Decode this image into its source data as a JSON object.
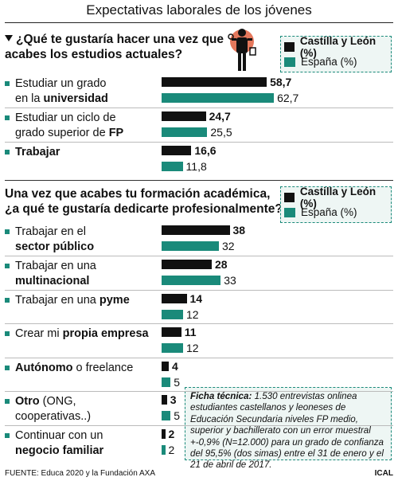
{
  "header": {
    "title": "Expectativas laborales de los jóvenes"
  },
  "footer": {
    "source": "FUENTE: Educa 2020 y la Fundación AXA",
    "credit": "ICAL"
  },
  "legend": {
    "cyl": "Castilla y León (%)",
    "esp": "España (%)"
  },
  "colors": {
    "cyl": "#111111",
    "esp": "#1a8a7a"
  },
  "ficha": {
    "label": "Ficha técnica:",
    "text": "1.530 entrevistas onlinea estudiantes castellanos y leoneses de Educación Secundaria niveles FP medio, superior y bachillerato con un error muestral +-0,9% (N=12.000) para un grado de confianza del 95,5% (dos simas) entre el 31 de enero y el 21 de abril de 2017."
  },
  "chart_data": [
    {
      "type": "bar",
      "title": "¿Qué te gustaría hacer una vez que acabes los estudios actuales?",
      "title_lines": [
        "¿Qué te gustaría hacer una vez que",
        "acabes los estudios actuales?"
      ],
      "categories": [
        "Estudiar un grado en la universidad",
        "Estudiar un ciclo de grado superior de FP",
        "Trabajar"
      ],
      "category_lines": [
        [
          [
            {
              "t": "Estudiar un grado",
              "b": false
            }
          ],
          [
            {
              "t": "en la ",
              "b": false
            },
            {
              "t": "universidad",
              "b": true
            }
          ]
        ],
        [
          [
            {
              "t": "Estudiar un ciclo de",
              "b": false
            }
          ],
          [
            {
              "t": "grado superior de ",
              "b": false
            },
            {
              "t": "FP",
              "b": true
            }
          ]
        ],
        [
          [
            {
              "t": "Trabajar",
              "b": true
            }
          ]
        ]
      ],
      "series": [
        {
          "name": "Castilla y León (%)",
          "values": [
            58.7,
            24.7,
            16.6
          ],
          "labels": [
            "58,7",
            "24,7",
            "16,6"
          ]
        },
        {
          "name": "España (%)",
          "values": [
            62.7,
            25.5,
            11.8
          ],
          "labels": [
            "62,7",
            "25,5",
            "11,8"
          ]
        }
      ],
      "orientation": "horizontal"
    },
    {
      "type": "bar",
      "title": "Una vez que acabes tu formación académica, ¿a qué te gustaría dedicarte profesionalmente?",
      "title_lines": [
        "Una vez que acabes tu formación académica,",
        "¿a qué te gustaría dedicarte profesionalmente?"
      ],
      "categories": [
        "Trabajar en el sector público",
        "Trabajar en una multinacional",
        "Trabajar en una pyme",
        "Crear mi propia empresa",
        "Autónomo o freelance",
        "Otro (ONG, cooperativas..)",
        "Continuar con un negocio familiar"
      ],
      "category_lines": [
        [
          [
            {
              "t": "Trabajar en el",
              "b": false
            }
          ],
          [
            {
              "t": "sector público",
              "b": true
            }
          ]
        ],
        [
          [
            {
              "t": "Trabajar en una",
              "b": false
            }
          ],
          [
            {
              "t": "multinacional",
              "b": true
            }
          ]
        ],
        [
          [
            {
              "t": "Trabajar en una ",
              "b": false
            },
            {
              "t": "pyme",
              "b": true
            }
          ]
        ],
        [
          [
            {
              "t": "Crear mi ",
              "b": false
            },
            {
              "t": "propia empresa",
              "b": true
            }
          ]
        ],
        [
          [
            {
              "t": "Autónomo",
              "b": true
            },
            {
              "t": " o freelance",
              "b": false
            }
          ]
        ],
        [
          [
            {
              "t": "Otro",
              "b": true
            },
            {
              "t": " (ONG,",
              "b": false
            }
          ],
          [
            {
              "t": "cooperativas..)",
              "b": false
            }
          ]
        ],
        [
          [
            {
              "t": "Continuar con un",
              "b": false
            }
          ],
          [
            {
              "t": "negocio familiar",
              "b": true
            }
          ]
        ]
      ],
      "series": [
        {
          "name": "Castilla y León (%)",
          "values": [
            38,
            28,
            14,
            11,
            4,
            3,
            2
          ],
          "labels": [
            "38",
            "28",
            "14",
            "11",
            "4",
            "3",
            "2"
          ]
        },
        {
          "name": "España (%)",
          "values": [
            32,
            33,
            12,
            12,
            5,
            5,
            2
          ],
          "labels": [
            "32",
            "33",
            "12",
            "12",
            "5",
            "5",
            "2"
          ]
        }
      ],
      "orientation": "horizontal"
    }
  ]
}
